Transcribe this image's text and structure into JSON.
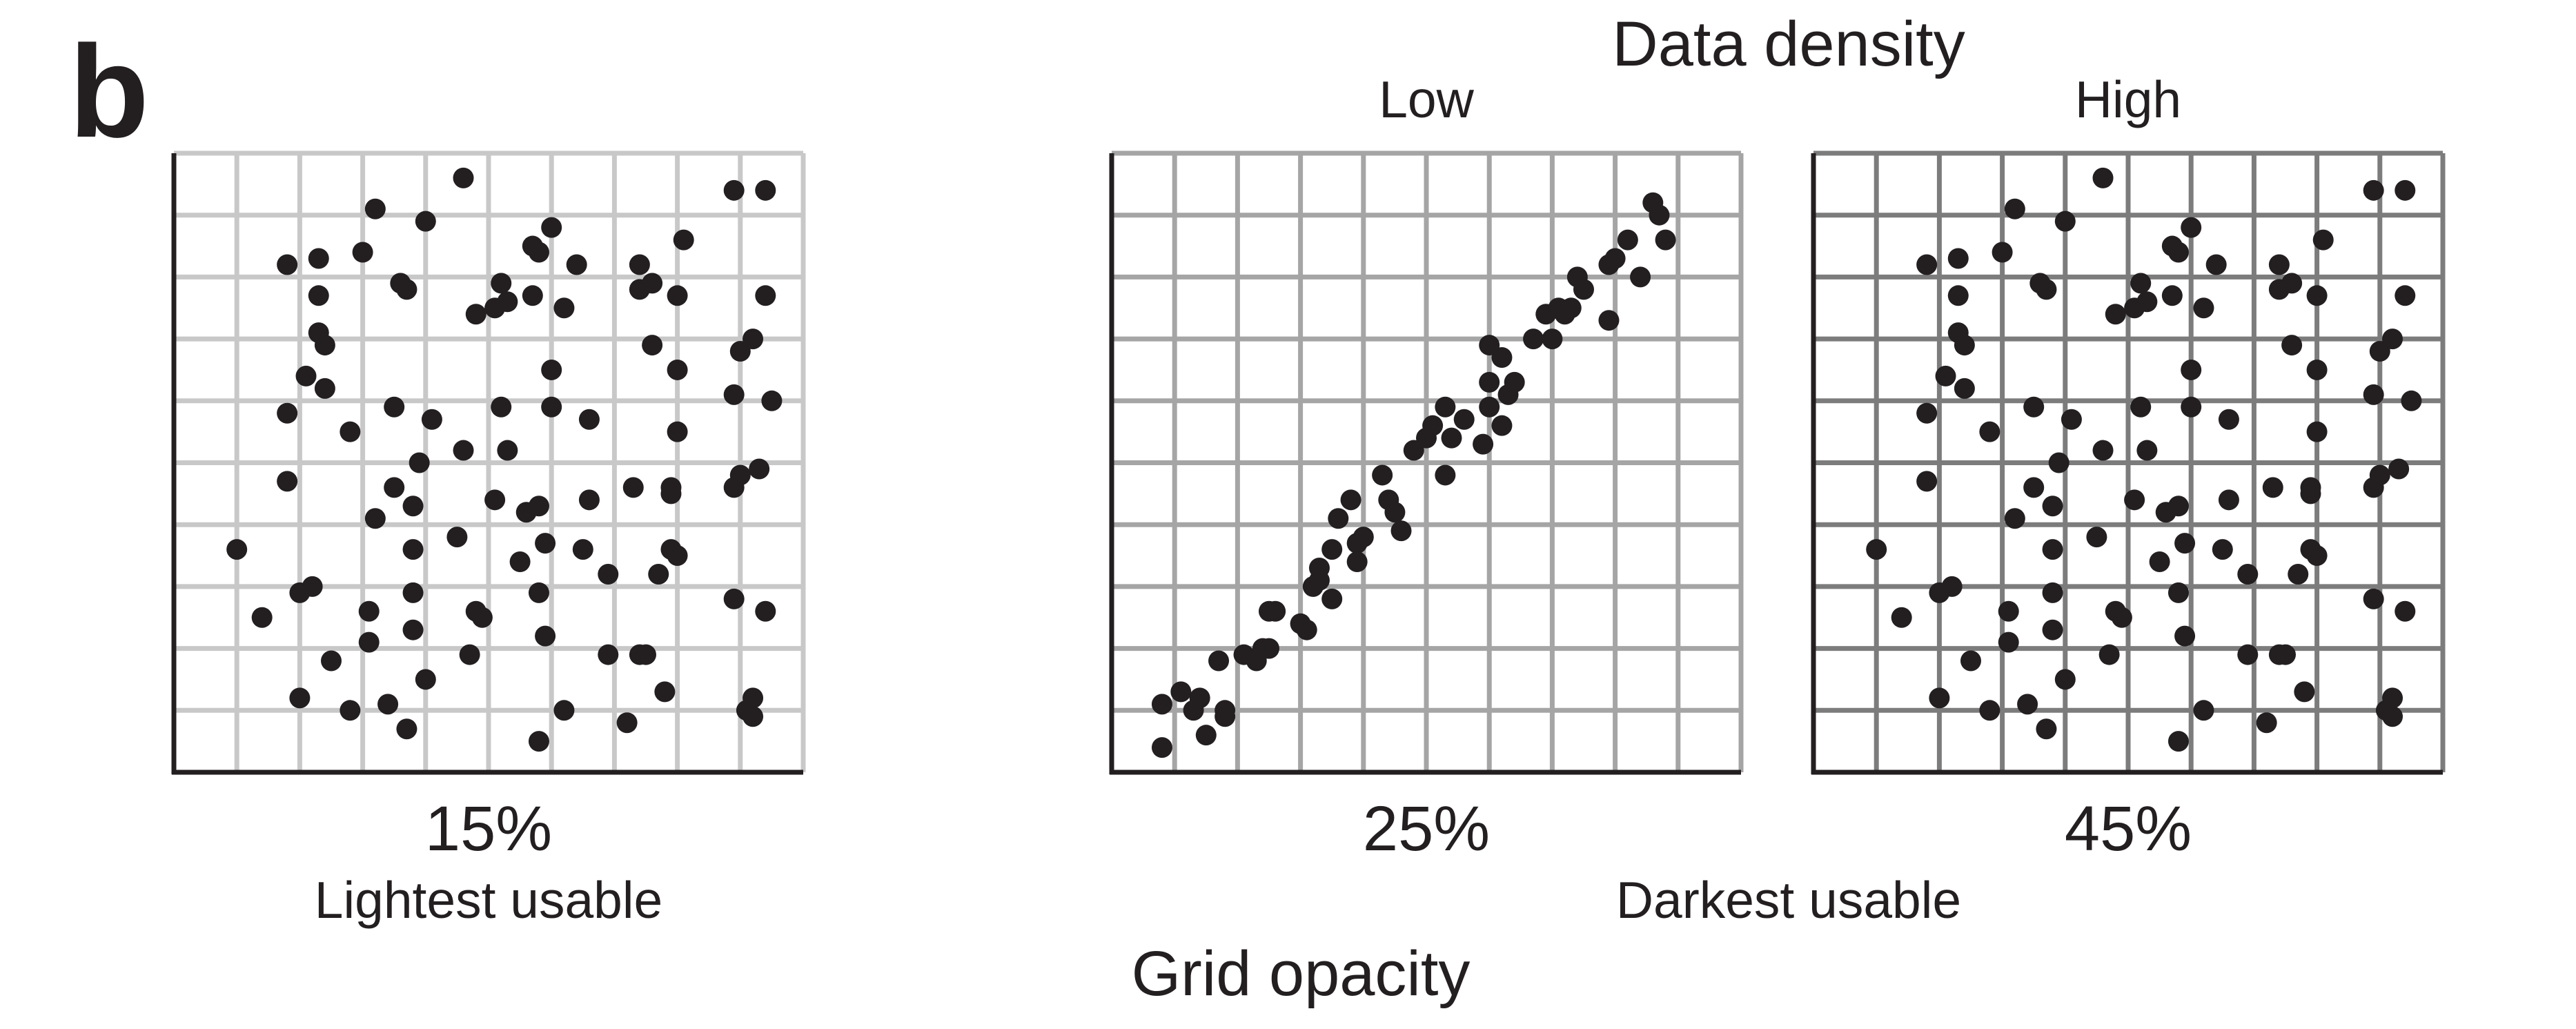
{
  "figure": {
    "panel_letter": "b",
    "top_title": "Data density",
    "bottom_title": "Grid opacity",
    "ink_color": "#231f20"
  },
  "chart_data": [
    {
      "type": "scatter",
      "id": "lightest",
      "column_label": "",
      "opacity_label": "15%",
      "caption": "Lightest usable",
      "grid_opacity": 0.15,
      "grid_color": "#c8c8c8",
      "grid": true,
      "divisions": 10,
      "xlim": [
        0,
        10
      ],
      "ylim": [
        0,
        10
      ],
      "points": [
        [
          1.0,
          3.6
        ],
        [
          1.4,
          2.5
        ],
        [
          1.8,
          8.2
        ],
        [
          1.8,
          5.8
        ],
        [
          1.8,
          4.7
        ],
        [
          2.0,
          1.2
        ],
        [
          2.0,
          2.9
        ],
        [
          2.1,
          6.4
        ],
        [
          2.2,
          3.0
        ],
        [
          2.3,
          8.3
        ],
        [
          2.3,
          7.7
        ],
        [
          2.3,
          7.1
        ],
        [
          2.4,
          6.9
        ],
        [
          2.4,
          6.2
        ],
        [
          2.5,
          1.8
        ],
        [
          2.8,
          1.0
        ],
        [
          2.8,
          5.5
        ],
        [
          3.0,
          8.4
        ],
        [
          3.1,
          2.6
        ],
        [
          3.1,
          2.1
        ],
        [
          3.2,
          4.1
        ],
        [
          3.2,
          9.1
        ],
        [
          3.4,
          1.1
        ],
        [
          3.5,
          4.6
        ],
        [
          3.5,
          5.9
        ],
        [
          3.6,
          7.9
        ],
        [
          3.7,
          0.7
        ],
        [
          3.7,
          7.8
        ],
        [
          3.8,
          2.3
        ],
        [
          3.8,
          2.9
        ],
        [
          3.8,
          3.6
        ],
        [
          3.8,
          4.3
        ],
        [
          3.9,
          5.0
        ],
        [
          4.0,
          1.5
        ],
        [
          4.0,
          8.9
        ],
        [
          4.1,
          5.7
        ],
        [
          4.5,
          3.8
        ],
        [
          4.6,
          5.2
        ],
        [
          4.6,
          9.6
        ],
        [
          4.7,
          1.9
        ],
        [
          4.8,
          7.4
        ],
        [
          4.8,
          2.6
        ],
        [
          4.9,
          2.5
        ],
        [
          5.1,
          4.4
        ],
        [
          5.1,
          7.5
        ],
        [
          5.2,
          7.9
        ],
        [
          5.2,
          5.9
        ],
        [
          5.3,
          5.2
        ],
        [
          5.3,
          7.6
        ],
        [
          5.5,
          3.4
        ],
        [
          5.6,
          4.2
        ],
        [
          5.7,
          7.7
        ],
        [
          5.7,
          8.5
        ],
        [
          5.8,
          0.5
        ],
        [
          5.8,
          8.4
        ],
        [
          5.8,
          2.9
        ],
        [
          5.8,
          4.3
        ],
        [
          5.9,
          3.7
        ],
        [
          5.9,
          2.2
        ],
        [
          6.0,
          8.8
        ],
        [
          6.0,
          6.5
        ],
        [
          6.0,
          5.9
        ],
        [
          6.2,
          7.5
        ],
        [
          6.2,
          1.0
        ],
        [
          6.4,
          8.2
        ],
        [
          6.5,
          3.6
        ],
        [
          6.6,
          5.7
        ],
        [
          6.6,
          4.4
        ],
        [
          6.9,
          3.2
        ],
        [
          6.9,
          1.9
        ],
        [
          7.2,
          0.8
        ],
        [
          7.3,
          4.6
        ],
        [
          7.4,
          1.9
        ],
        [
          7.4,
          8.2
        ],
        [
          7.4,
          7.8
        ],
        [
          7.5,
          1.9
        ],
        [
          7.6,
          7.9
        ],
        [
          7.6,
          6.9
        ],
        [
          7.7,
          3.2
        ],
        [
          7.8,
          1.3
        ],
        [
          7.9,
          4.5
        ],
        [
          7.9,
          4.6
        ],
        [
          7.9,
          3.6
        ],
        [
          8.0,
          3.5
        ],
        [
          8.0,
          7.7
        ],
        [
          8.0,
          6.5
        ],
        [
          8.0,
          5.5
        ],
        [
          8.1,
          8.6
        ],
        [
          8.9,
          2.8
        ],
        [
          8.9,
          6.1
        ],
        [
          8.9,
          9.4
        ],
        [
          8.9,
          4.6
        ],
        [
          9.0,
          4.8
        ],
        [
          9.0,
          6.8
        ],
        [
          9.1,
          1.0
        ],
        [
          9.2,
          0.9
        ],
        [
          9.2,
          7.0
        ],
        [
          9.2,
          1.2
        ],
        [
          9.3,
          4.9
        ],
        [
          9.4,
          2.6
        ],
        [
          9.4,
          7.7
        ],
        [
          9.4,
          9.4
        ],
        [
          9.5,
          6.0
        ]
      ]
    },
    {
      "type": "scatter",
      "id": "darkest",
      "column_label": "Low",
      "opacity_label": "25%",
      "caption": "Darkest usable",
      "grid_opacity": 0.25,
      "grid_color": "#a5a5a5",
      "grid": true,
      "divisions": 10,
      "xlim": [
        0,
        10
      ],
      "ylim": [
        0,
        10
      ],
      "points": [
        [
          0.8,
          0.4
        ],
        [
          0.8,
          1.1
        ],
        [
          1.1,
          1.3
        ],
        [
          1.3,
          1.0
        ],
        [
          1.4,
          1.2
        ],
        [
          1.5,
          0.6
        ],
        [
          1.7,
          1.8
        ],
        [
          1.8,
          1.0
        ],
        [
          1.8,
          0.9
        ],
        [
          2.1,
          1.9
        ],
        [
          2.3,
          1.8
        ],
        [
          2.4,
          2.0
        ],
        [
          2.5,
          2.6
        ],
        [
          2.5,
          2.0
        ],
        [
          2.6,
          2.6
        ],
        [
          3.0,
          2.4
        ],
        [
          3.1,
          2.3
        ],
        [
          3.2,
          3.0
        ],
        [
          3.3,
          3.1
        ],
        [
          3.3,
          3.3
        ],
        [
          3.5,
          3.6
        ],
        [
          3.5,
          2.8
        ],
        [
          3.6,
          4.1
        ],
        [
          3.8,
          4.4
        ],
        [
          3.9,
          3.7
        ],
        [
          3.9,
          3.4
        ],
        [
          4.0,
          3.8
        ],
        [
          4.3,
          4.8
        ],
        [
          4.4,
          4.4
        ],
        [
          4.5,
          4.2
        ],
        [
          4.6,
          3.9
        ],
        [
          4.8,
          5.2
        ],
        [
          5.0,
          5.4
        ],
        [
          5.1,
          5.6
        ],
        [
          5.3,
          4.8
        ],
        [
          5.3,
          5.9
        ],
        [
          5.4,
          5.4
        ],
        [
          5.6,
          5.7
        ],
        [
          5.9,
          5.3
        ],
        [
          6.0,
          6.9
        ],
        [
          6.0,
          6.3
        ],
        [
          6.0,
          5.9
        ],
        [
          6.2,
          5.6
        ],
        [
          6.2,
          6.7
        ],
        [
          6.3,
          6.1
        ],
        [
          6.4,
          6.3
        ],
        [
          6.7,
          7.0
        ],
        [
          6.9,
          7.4
        ],
        [
          7.0,
          7.0
        ],
        [
          7.1,
          7.5
        ],
        [
          7.2,
          7.4
        ],
        [
          7.3,
          7.5
        ],
        [
          7.4,
          8.0
        ],
        [
          7.5,
          7.8
        ],
        [
          7.9,
          7.3
        ],
        [
          7.9,
          8.2
        ],
        [
          8.0,
          8.3
        ],
        [
          8.2,
          8.6
        ],
        [
          8.4,
          8.0
        ],
        [
          8.6,
          9.2
        ],
        [
          8.7,
          9.0
        ],
        [
          8.8,
          8.6
        ]
      ]
    },
    {
      "type": "scatter",
      "id": "high",
      "column_label": "High",
      "opacity_label": "45%",
      "caption": "",
      "grid_opacity": 0.45,
      "grid_color": "#7c7c7c",
      "grid": true,
      "divisions": 10,
      "xlim": [
        0,
        10
      ],
      "ylim": [
        0,
        10
      ],
      "points": [
        [
          1.0,
          3.6
        ],
        [
          1.4,
          2.5
        ],
        [
          1.8,
          8.2
        ],
        [
          1.8,
          5.8
        ],
        [
          1.8,
          4.7
        ],
        [
          2.0,
          1.2
        ],
        [
          2.0,
          2.9
        ],
        [
          2.1,
          6.4
        ],
        [
          2.2,
          3.0
        ],
        [
          2.3,
          8.3
        ],
        [
          2.3,
          7.7
        ],
        [
          2.3,
          7.1
        ],
        [
          2.4,
          6.9
        ],
        [
          2.4,
          6.2
        ],
        [
          2.5,
          1.8
        ],
        [
          2.8,
          1.0
        ],
        [
          2.8,
          5.5
        ],
        [
          3.0,
          8.4
        ],
        [
          3.1,
          2.6
        ],
        [
          3.1,
          2.1
        ],
        [
          3.2,
          4.1
        ],
        [
          3.2,
          9.1
        ],
        [
          3.4,
          1.1
        ],
        [
          3.5,
          4.6
        ],
        [
          3.5,
          5.9
        ],
        [
          3.6,
          7.9
        ],
        [
          3.7,
          0.7
        ],
        [
          3.7,
          7.8
        ],
        [
          3.8,
          2.3
        ],
        [
          3.8,
          2.9
        ],
        [
          3.8,
          3.6
        ],
        [
          3.8,
          4.3
        ],
        [
          3.9,
          5.0
        ],
        [
          4.0,
          1.5
        ],
        [
          4.0,
          8.9
        ],
        [
          4.1,
          5.7
        ],
        [
          4.5,
          3.8
        ],
        [
          4.6,
          5.2
        ],
        [
          4.6,
          9.6
        ],
        [
          4.7,
          1.9
        ],
        [
          4.8,
          7.4
        ],
        [
          4.8,
          2.6
        ],
        [
          4.9,
          2.5
        ],
        [
          5.1,
          4.4
        ],
        [
          5.1,
          7.5
        ],
        [
          5.2,
          7.9
        ],
        [
          5.2,
          5.9
        ],
        [
          5.3,
          5.2
        ],
        [
          5.3,
          7.6
        ],
        [
          5.5,
          3.4
        ],
        [
          5.6,
          4.2
        ],
        [
          5.7,
          7.7
        ],
        [
          5.7,
          8.5
        ],
        [
          5.8,
          0.5
        ],
        [
          5.8,
          8.4
        ],
        [
          5.8,
          2.9
        ],
        [
          5.8,
          4.3
        ],
        [
          5.9,
          3.7
        ],
        [
          5.9,
          2.2
        ],
        [
          6.0,
          8.8
        ],
        [
          6.0,
          6.5
        ],
        [
          6.0,
          5.9
        ],
        [
          6.2,
          7.5
        ],
        [
          6.2,
          1.0
        ],
        [
          6.4,
          8.2
        ],
        [
          6.5,
          3.6
        ],
        [
          6.6,
          5.7
        ],
        [
          6.6,
          4.4
        ],
        [
          6.9,
          3.2
        ],
        [
          6.9,
          1.9
        ],
        [
          7.2,
          0.8
        ],
        [
          7.3,
          4.6
        ],
        [
          7.4,
          1.9
        ],
        [
          7.4,
          8.2
        ],
        [
          7.4,
          7.8
        ],
        [
          7.5,
          1.9
        ],
        [
          7.6,
          7.9
        ],
        [
          7.6,
          6.9
        ],
        [
          7.7,
          3.2
        ],
        [
          7.8,
          1.3
        ],
        [
          7.9,
          4.5
        ],
        [
          7.9,
          4.6
        ],
        [
          7.9,
          3.6
        ],
        [
          8.0,
          3.5
        ],
        [
          8.0,
          7.7
        ],
        [
          8.0,
          6.5
        ],
        [
          8.0,
          5.5
        ],
        [
          8.1,
          8.6
        ],
        [
          8.9,
          2.8
        ],
        [
          8.9,
          6.1
        ],
        [
          8.9,
          9.4
        ],
        [
          8.9,
          4.6
        ],
        [
          9.0,
          4.8
        ],
        [
          9.0,
          6.8
        ],
        [
          9.1,
          1.0
        ],
        [
          9.2,
          0.9
        ],
        [
          9.2,
          7.0
        ],
        [
          9.2,
          1.2
        ],
        [
          9.3,
          4.9
        ],
        [
          9.4,
          2.6
        ],
        [
          9.4,
          7.7
        ],
        [
          9.4,
          9.4
        ],
        [
          9.5,
          6.0
        ]
      ]
    }
  ]
}
